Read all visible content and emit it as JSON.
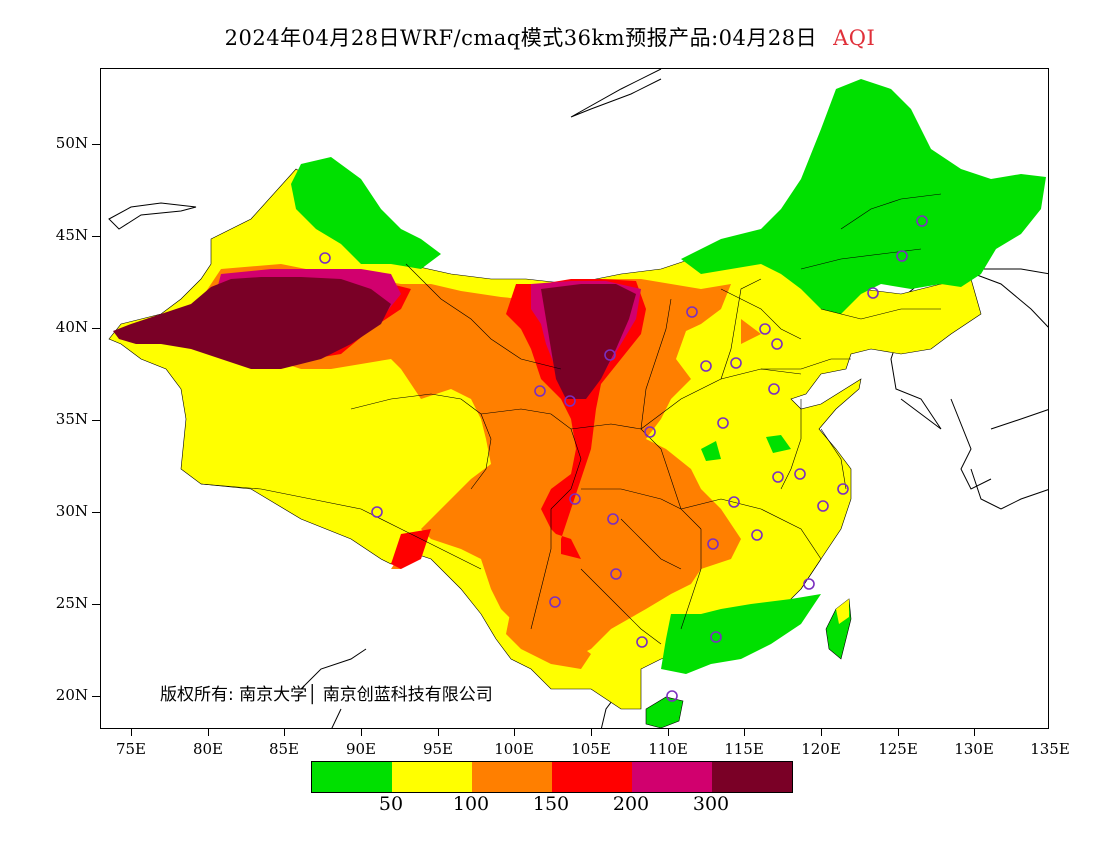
{
  "title": {
    "text": "2024年04月28日WRF/cmaq模式36km预报产品:04月28日",
    "variable": "AQI",
    "variable_color": "#e0303a"
  },
  "axes": {
    "y_labels": [
      "50N",
      "45N",
      "40N",
      "35N",
      "30N",
      "25N",
      "20N"
    ],
    "x_labels": [
      "75E",
      "80E",
      "85E",
      "90E",
      "95E",
      "100E",
      "105E",
      "110E",
      "115E",
      "120E",
      "125E",
      "130E",
      "135E"
    ]
  },
  "copyright": "版权所有: 南京大学│ 南京创蓝科技有限公司",
  "legend": {
    "colors": [
      "#00e000",
      "#ffff00",
      "#ff7f00",
      "#ff0000",
      "#d1006e",
      "#7a0026"
    ],
    "labels": [
      "50",
      "100",
      "150",
      "200",
      "300"
    ]
  },
  "palette": {
    "good": "#00e000",
    "moderate": "#ffff00",
    "sensitive": "#ff7f00",
    "unhealthy": "#ff0000",
    "very_unhealthy": "#d1006e",
    "hazardous": "#7a0026"
  }
}
